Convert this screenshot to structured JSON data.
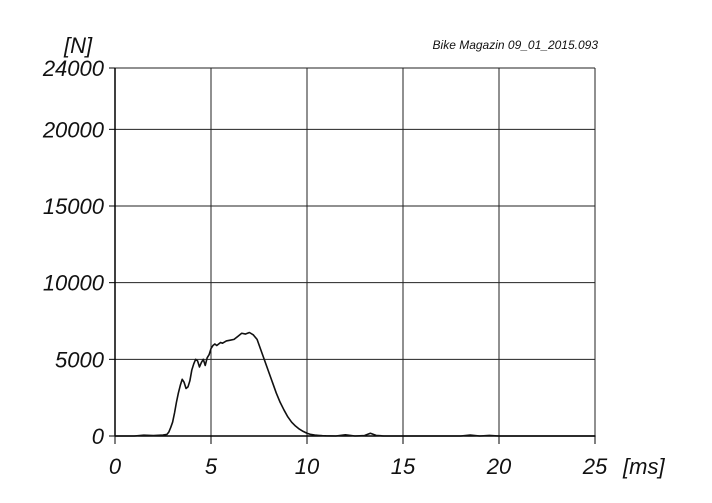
{
  "chart_data": {
    "type": "line",
    "title": "",
    "source_label": "Bike Magazin 09_01_2015.093",
    "y_unit_label": "[N]",
    "x_unit_label": "[ms]",
    "xlim": [
      0,
      25
    ],
    "ylim": [
      0,
      24000
    ],
    "x_ticks": [
      0,
      5,
      10,
      15,
      20,
      25
    ],
    "x_tick_labels": [
      "0",
      "5",
      "10",
      "15",
      "20",
      "25"
    ],
    "y_ticks": [
      0,
      5000,
      10000,
      15000,
      20000,
      24000
    ],
    "y_tick_labels": [
      "0",
      "5000",
      "10000",
      "15000",
      "20000",
      "24000"
    ],
    "grid": true,
    "line_color": "#111111",
    "grid_color": "#222222",
    "series": [
      {
        "x": [
          0,
          0.5,
          1.0,
          1.5,
          2.0,
          2.5,
          2.7,
          2.8,
          2.9,
          3.0,
          3.1,
          3.2,
          3.3,
          3.4,
          3.5,
          3.6,
          3.7,
          3.8,
          3.9,
          4.0,
          4.1,
          4.2,
          4.3,
          4.4,
          4.5,
          4.6,
          4.7,
          4.8,
          4.9,
          5.0,
          5.1,
          5.2,
          5.3,
          5.4,
          5.5,
          5.6,
          5.8,
          6.0,
          6.2,
          6.4,
          6.6,
          6.8,
          7.0,
          7.2,
          7.4,
          7.6,
          7.8,
          8.0,
          8.2,
          8.4,
          8.6,
          8.8,
          9.0,
          9.2,
          9.4,
          9.6,
          9.8,
          10.0,
          10.2,
          10.4,
          10.6,
          10.8,
          11.0,
          11.5,
          12.0,
          12.5,
          13.0,
          13.3,
          13.6,
          14.0,
          15.0,
          16.0,
          17.0,
          18.0,
          18.5,
          19.0,
          19.5,
          20.0,
          21.0,
          22.0,
          23.0,
          24.0,
          25.0
        ],
        "y": [
          0,
          0,
          0,
          50,
          30,
          60,
          100,
          250,
          550,
          900,
          1500,
          2200,
          2800,
          3300,
          3700,
          3500,
          3100,
          3200,
          3600,
          4300,
          4700,
          5000,
          4900,
          4500,
          4800,
          5000,
          4600,
          5100,
          5300,
          5700,
          5900,
          6000,
          5900,
          6000,
          6100,
          6050,
          6200,
          6250,
          6300,
          6500,
          6700,
          6650,
          6750,
          6600,
          6300,
          5600,
          4900,
          4200,
          3500,
          2800,
          2200,
          1700,
          1250,
          900,
          650,
          450,
          300,
          180,
          100,
          60,
          40,
          20,
          10,
          0,
          80,
          0,
          30,
          180,
          40,
          0,
          0,
          0,
          0,
          0,
          60,
          0,
          40,
          0,
          0,
          0,
          0,
          0,
          0
        ]
      }
    ]
  }
}
